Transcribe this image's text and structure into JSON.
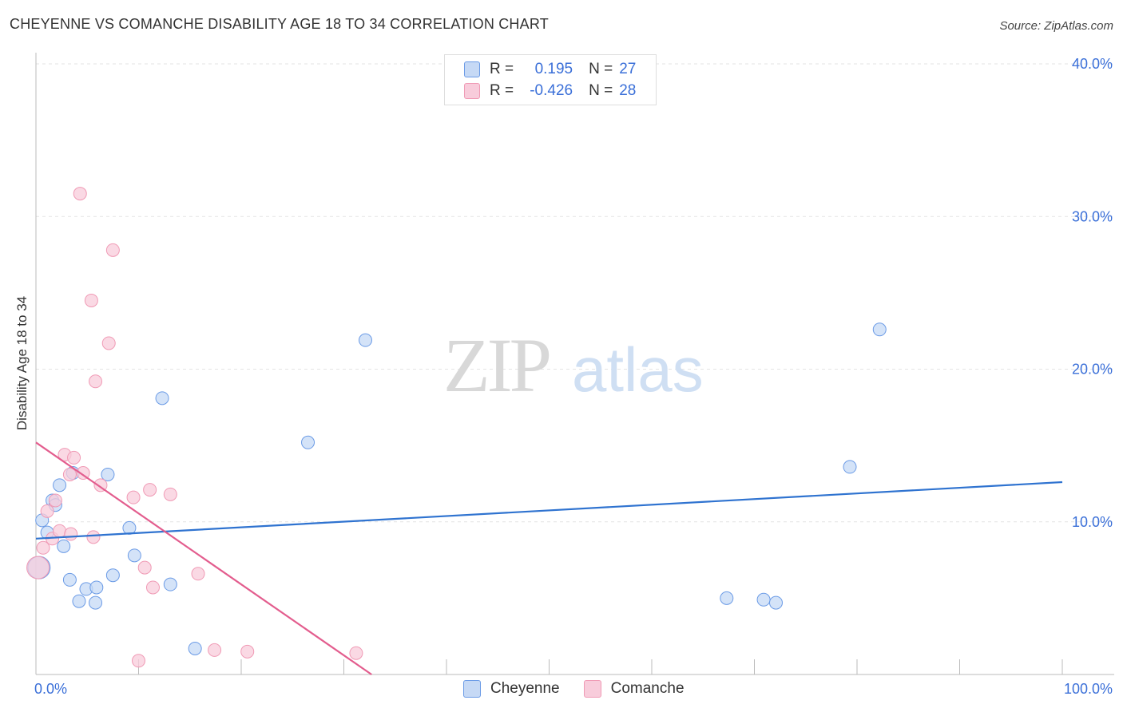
{
  "title": "CHEYENNE VS COMANCHE DISABILITY AGE 18 TO 34 CORRELATION CHART",
  "source": "Source: ZipAtlas.com",
  "legend": {
    "rows": [
      {
        "r_label": "R =",
        "r_value": "0.195",
        "n_label": "N =",
        "n_value": "27"
      },
      {
        "r_label": "R =",
        "r_value": "-0.426",
        "n_label": "N =",
        "n_value": "28"
      }
    ]
  },
  "bottom_legend": [
    "Cheyenne",
    "Comanche"
  ],
  "chart_data": {
    "type": "scatter",
    "ylabel": "Disability Age 18 to 34",
    "xlabel": "",
    "xlim": [
      0,
      100
    ],
    "ylim": [
      0,
      40
    ],
    "x_tick_labels": [
      "0.0%",
      "100.0%"
    ],
    "y_ticks": [
      10,
      20,
      30,
      40
    ],
    "y_tick_labels": [
      "10.0%",
      "20.0%",
      "30.0%",
      "40.0%"
    ],
    "grid": true,
    "legend_position": "top-center",
    "watermark": {
      "zip": "ZIP",
      "atlas": "atlas"
    },
    "series": [
      {
        "name": "Cheyenne",
        "color": "#6b9be6",
        "fill": "#c6d9f5",
        "line_color": "#2f73d0",
        "trend": {
          "x0": 0,
          "y0": 8.9,
          "x1": 100,
          "y1": 12.6
        },
        "points": [
          [
            0.3,
            7.0
          ],
          [
            0.6,
            10.1
          ],
          [
            1.1,
            9.3
          ],
          [
            1.6,
            11.4
          ],
          [
            1.9,
            11.1
          ],
          [
            2.3,
            12.4
          ],
          [
            2.7,
            8.4
          ],
          [
            3.3,
            6.2
          ],
          [
            3.6,
            13.2
          ],
          [
            4.2,
            4.8
          ],
          [
            4.9,
            5.6
          ],
          [
            5.8,
            4.7
          ],
          [
            5.9,
            5.7
          ],
          [
            7.0,
            13.1
          ],
          [
            7.5,
            6.5
          ],
          [
            9.1,
            9.6
          ],
          [
            9.6,
            7.8
          ],
          [
            12.3,
            18.1
          ],
          [
            13.1,
            5.9
          ],
          [
            15.5,
            1.7
          ],
          [
            26.5,
            15.2
          ],
          [
            32.1,
            21.9
          ],
          [
            67.3,
            5.0
          ],
          [
            70.9,
            4.9
          ],
          [
            72.1,
            4.7
          ],
          [
            79.3,
            13.6
          ],
          [
            82.2,
            22.6
          ]
        ]
      },
      {
        "name": "Comanche",
        "color": "#f09ab5",
        "fill": "#f8ccdb",
        "line_color": "#e35d8e",
        "trend": {
          "x0": 0,
          "y0": 15.2,
          "x1": 32.7,
          "y1": 0
        },
        "points": [
          [
            0.2,
            7.0
          ],
          [
            0.7,
            8.3
          ],
          [
            1.1,
            10.7
          ],
          [
            1.6,
            8.9
          ],
          [
            1.9,
            11.4
          ],
          [
            2.3,
            9.4
          ],
          [
            2.8,
            14.4
          ],
          [
            3.3,
            13.1
          ],
          [
            3.4,
            9.2
          ],
          [
            3.7,
            14.2
          ],
          [
            4.3,
            31.5
          ],
          [
            4.6,
            13.2
          ],
          [
            5.4,
            24.5
          ],
          [
            5.6,
            9.0
          ],
          [
            6.3,
            12.4
          ],
          [
            7.1,
            21.7
          ],
          [
            7.5,
            27.8
          ],
          [
            5.8,
            19.2
          ],
          [
            9.5,
            11.6
          ],
          [
            10.0,
            0.9
          ],
          [
            10.6,
            7.0
          ],
          [
            11.1,
            12.1
          ],
          [
            11.4,
            5.7
          ],
          [
            13.1,
            11.8
          ],
          [
            15.8,
            6.6
          ],
          [
            17.4,
            1.6
          ],
          [
            20.6,
            1.5
          ],
          [
            31.2,
            1.4
          ]
        ]
      }
    ]
  }
}
